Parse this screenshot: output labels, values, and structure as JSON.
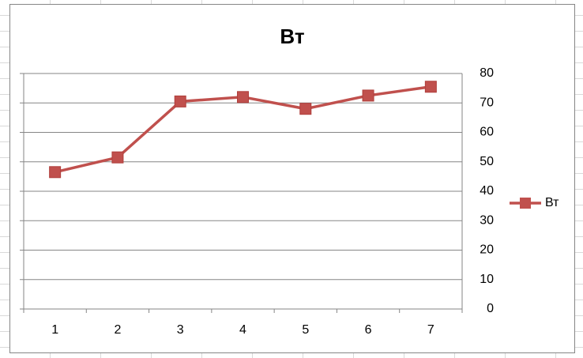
{
  "chart_data": {
    "type": "line",
    "title": "Вт",
    "categories": [
      "1",
      "2",
      "3",
      "4",
      "5",
      "6",
      "7"
    ],
    "series": [
      {
        "name": "Вт",
        "color": "#c0504d",
        "values": [
          46.5,
          51.5,
          70.5,
          72,
          68,
          72.5,
          75.5
        ]
      }
    ],
    "ylim": [
      0,
      80
    ],
    "yticks": [
      0,
      10,
      20,
      30,
      40,
      50,
      60,
      70,
      80
    ],
    "y_axis_side": "right",
    "grid": true,
    "legend": "right"
  }
}
